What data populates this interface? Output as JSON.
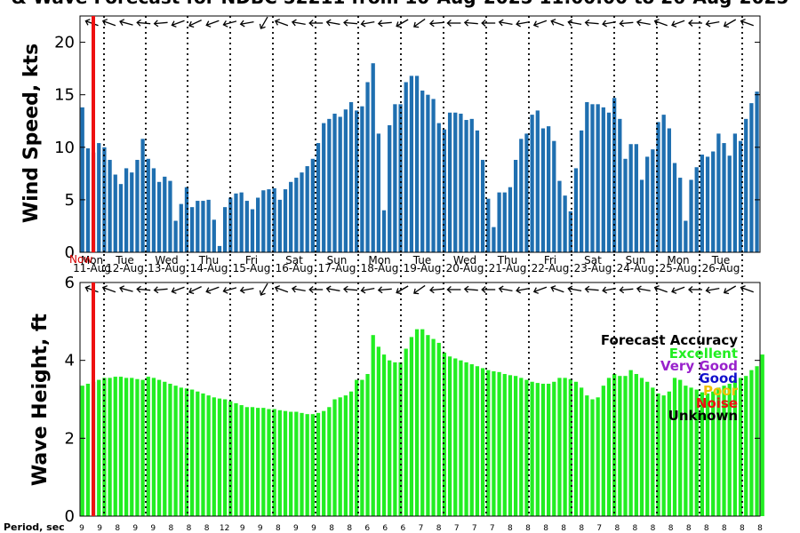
{
  "title": "& Wave Forecast for NDBC 52211 from 10-Aug-2025 11:00:00 to 26-Aug-2025",
  "now_label": "Now",
  "period_label": "Period, sec",
  "colors": {
    "wind_bar": "#1f6fb0",
    "wave_bar": "#22ee22",
    "now_line": "#ee1111",
    "excellent": "#22ee22",
    "very_good": "#9922cc",
    "good": "#1111cc",
    "poor": "#f0c000",
    "noise": "#ee1111",
    "unknown": "#000000"
  },
  "legend": {
    "title": "Forecast Accuracy",
    "items": [
      {
        "label": "Excellent",
        "color": "#22ee22"
      },
      {
        "label": "Very Good",
        "color": "#9922cc"
      },
      {
        "label": "Good",
        "color": "#1111cc"
      },
      {
        "label": "Poor",
        "color": "#f0c000"
      },
      {
        "label": "Noise",
        "color": "#ee1111"
      },
      {
        "label": "Unknown",
        "color": "#000000"
      }
    ]
  },
  "chart_data": [
    {
      "type": "bar",
      "ylabel": "Wind Speed, kts",
      "ylim": [
        0,
        22.5
      ],
      "yticks": [
        0,
        5,
        10,
        15,
        20
      ],
      "day_labels": [
        {
          "weekday": "Mon",
          "date": "11-Aug"
        },
        {
          "weekday": "Tue",
          "date": "12-Aug"
        },
        {
          "weekday": "Wed",
          "date": "13-Aug"
        },
        {
          "weekday": "Thu",
          "date": "14-Aug"
        },
        {
          "weekday": "Fri",
          "date": "15-Aug"
        },
        {
          "weekday": "Sat",
          "date": "16-Aug"
        },
        {
          "weekday": "Sun",
          "date": "17-Aug"
        },
        {
          "weekday": "Mon",
          "date": "18-Aug"
        },
        {
          "weekday": "Tue",
          "date": "19-Aug"
        },
        {
          "weekday": "Wed",
          "date": "20-Aug"
        },
        {
          "weekday": "Thu",
          "date": "21-Aug"
        },
        {
          "weekday": "Fri",
          "date": "22-Aug"
        },
        {
          "weekday": "Sat",
          "date": "23-Aug"
        },
        {
          "weekday": "Sun",
          "date": "24-Aug"
        },
        {
          "weekday": "Mon",
          "date": "25-Aug"
        },
        {
          "weekday": "Tue",
          "date": "26-Aug"
        }
      ],
      "values": [
        13.8,
        9.9,
        9.5,
        10.4,
        10.0,
        8.8,
        7.4,
        6.5,
        8.0,
        7.6,
        8.8,
        10.8,
        8.9,
        8.0,
        6.7,
        7.2,
        6.8,
        3.0,
        4.6,
        6.2,
        4.3,
        4.9,
        4.9,
        5.0,
        3.1,
        0.6,
        4.3,
        5.2,
        5.6,
        5.7,
        4.9,
        4.1,
        5.2,
        5.9,
        6.0,
        6.1,
        5.0,
        6.0,
        6.7,
        7.1,
        7.6,
        8.2,
        8.9,
        10.4,
        12.3,
        12.7,
        13.2,
        12.9,
        13.6,
        14.3,
        13.5,
        13.9,
        16.2,
        18.0,
        11.3,
        4.0,
        12.1,
        14.1,
        14.1,
        16.2,
        16.8,
        16.8,
        15.4,
        15.0,
        14.6,
        12.3,
        11.7,
        13.3,
        13.3,
        13.2,
        12.6,
        12.7,
        11.6,
        8.8,
        5.1,
        2.4,
        5.7,
        5.7,
        6.2,
        8.8,
        10.8,
        11.3,
        13.1,
        13.5,
        11.8,
        12.0,
        10.6,
        6.8,
        5.4,
        3.9,
        8.0,
        11.6,
        14.3,
        14.1,
        14.1,
        13.8,
        13.3,
        14.7,
        12.7,
        8.9,
        10.3,
        10.3,
        6.9,
        9.1,
        9.8,
        12.4,
        13.1,
        11.8,
        8.5,
        7.1,
        3.0,
        6.9,
        8.1,
        9.3,
        9.1,
        9.6,
        11.3,
        10.4,
        9.2,
        11.3,
        10.6,
        12.7,
        14.2,
        15.3
      ]
    },
    {
      "type": "bar",
      "ylabel": "Wave Height, ft",
      "ylim": [
        0,
        6
      ],
      "yticks": [
        0,
        2,
        4,
        6
      ],
      "values": [
        3.35,
        3.4,
        3.45,
        3.5,
        3.55,
        3.55,
        3.58,
        3.58,
        3.55,
        3.55,
        3.52,
        3.5,
        3.58,
        3.55,
        3.5,
        3.45,
        3.4,
        3.35,
        3.3,
        3.28,
        3.25,
        3.2,
        3.15,
        3.1,
        3.05,
        3.02,
        3.0,
        2.95,
        2.9,
        2.85,
        2.8,
        2.8,
        2.78,
        2.78,
        2.75,
        2.75,
        2.72,
        2.7,
        2.68,
        2.68,
        2.65,
        2.62,
        2.62,
        2.65,
        2.7,
        2.8,
        3.0,
        3.05,
        3.1,
        3.2,
        3.5,
        3.5,
        3.65,
        4.65,
        4.35,
        4.15,
        4.0,
        3.95,
        3.95,
        4.3,
        4.6,
        4.8,
        4.8,
        4.65,
        4.55,
        4.45,
        4.2,
        4.1,
        4.05,
        4.0,
        3.95,
        3.9,
        3.85,
        3.8,
        3.75,
        3.72,
        3.7,
        3.65,
        3.62,
        3.6,
        3.55,
        3.5,
        3.45,
        3.42,
        3.4,
        3.4,
        3.45,
        3.55,
        3.55,
        3.52,
        3.45,
        3.3,
        3.1,
        3.0,
        3.05,
        3.35,
        3.55,
        3.65,
        3.6,
        3.6,
        3.75,
        3.65,
        3.55,
        3.45,
        3.3,
        3.15,
        3.1,
        3.2,
        3.55,
        3.5,
        3.35,
        3.3,
        3.25,
        3.18,
        3.15,
        3.2,
        3.3,
        3.35,
        3.4,
        3.5,
        3.55,
        3.6,
        3.75,
        3.85,
        4.15
      ]
    }
  ],
  "period_values": [
    "9",
    "9",
    "8",
    "9",
    "9",
    "8",
    "8",
    "8",
    "12",
    "9",
    "9",
    "8",
    "9",
    "9",
    "8",
    "8",
    "6",
    "6",
    "6",
    "7",
    "8",
    "7",
    "7",
    "7",
    "8",
    "8",
    "8",
    "8",
    "8",
    "7",
    "8",
    "8",
    "8",
    "8",
    "8",
    "8",
    "8",
    "8",
    "8"
  ]
}
